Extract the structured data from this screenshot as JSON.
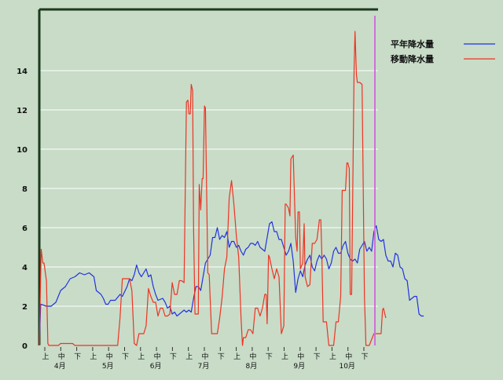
{
  "chart_data": {
    "type": "line",
    "title": "",
    "xlabel": "",
    "ylabel": "",
    "ylim": [
      0,
      16
    ],
    "yticks": [
      0,
      2,
      4,
      6,
      8,
      10,
      12,
      14
    ],
    "grid": true,
    "legend_position": "top-right",
    "period_labels": [
      "上",
      "中",
      "下"
    ],
    "months": [
      "4月",
      "5月",
      "6月",
      "7月",
      "8月",
      "9月",
      "10月"
    ],
    "x_range": [
      0,
      190
    ],
    "series": [
      {
        "name": "平年降水量",
        "color": "#2233dd",
        "points": [
          [
            0,
            0
          ],
          [
            0.6,
            2.1
          ],
          [
            3,
            2.0
          ],
          [
            5,
            2.0
          ],
          [
            7,
            2.2
          ],
          [
            9,
            2.8
          ],
          [
            11,
            3.0
          ],
          [
            13,
            3.4
          ],
          [
            15,
            3.5
          ],
          [
            17,
            3.7
          ],
          [
            19,
            3.6
          ],
          [
            21,
            3.7
          ],
          [
            23,
            3.5
          ],
          [
            24,
            2.8
          ],
          [
            26,
            2.6
          ],
          [
            27,
            2.4
          ],
          [
            28,
            2.1
          ],
          [
            29,
            2.1
          ],
          [
            30,
            2.3
          ],
          [
            32,
            2.3
          ],
          [
            34,
            2.6
          ],
          [
            35,
            2.5
          ],
          [
            37,
            3.0
          ],
          [
            38,
            3.4
          ],
          [
            39,
            3.3
          ],
          [
            40,
            3.6
          ],
          [
            41,
            4.1
          ],
          [
            42,
            3.7
          ],
          [
            43,
            3.5
          ],
          [
            44,
            3.7
          ],
          [
            45,
            3.9
          ],
          [
            46,
            3.5
          ],
          [
            47,
            3.6
          ],
          [
            48,
            3.0
          ],
          [
            49,
            2.6
          ],
          [
            50,
            2.3
          ],
          [
            52,
            2.4
          ],
          [
            53,
            2.2
          ],
          [
            54,
            1.9
          ],
          [
            55,
            2.0
          ],
          [
            56,
            1.6
          ],
          [
            57,
            1.7
          ],
          [
            58,
            1.5
          ],
          [
            60,
            1.7
          ],
          [
            61,
            1.8
          ],
          [
            62,
            1.7
          ],
          [
            63,
            1.8
          ],
          [
            64,
            1.7
          ],
          [
            65,
            2.4
          ],
          [
            66,
            3.0
          ],
          [
            67,
            3.0
          ],
          [
            68,
            2.8
          ],
          [
            69,
            3.5
          ],
          [
            70,
            4.2
          ],
          [
            71,
            4.4
          ],
          [
            72,
            4.6
          ],
          [
            73,
            5.5
          ],
          [
            74,
            5.5
          ],
          [
            75,
            6.0
          ],
          [
            76,
            5.4
          ],
          [
            77,
            5.6
          ],
          [
            78,
            5.5
          ],
          [
            79,
            5.8
          ],
          [
            80,
            5.0
          ],
          [
            81,
            5.3
          ],
          [
            82,
            5.3
          ],
          [
            83,
            5.0
          ],
          [
            84,
            5.1
          ],
          [
            85,
            4.8
          ],
          [
            86,
            4.6
          ],
          [
            87,
            4.9
          ],
          [
            88,
            5.0
          ],
          [
            89,
            5.2
          ],
          [
            90,
            5.2
          ],
          [
            91,
            5.1
          ],
          [
            92,
            5.3
          ],
          [
            93,
            5.0
          ],
          [
            94,
            4.9
          ],
          [
            95,
            4.8
          ],
          [
            96,
            5.5
          ],
          [
            97,
            6.2
          ],
          [
            98,
            6.3
          ],
          [
            99,
            5.8
          ],
          [
            100,
            5.8
          ],
          [
            101,
            5.4
          ],
          [
            102,
            5.4
          ],
          [
            103,
            5.0
          ],
          [
            104,
            4.6
          ],
          [
            105,
            4.8
          ],
          [
            106,
            5.2
          ],
          [
            107,
            4.3
          ],
          [
            108,
            2.7
          ],
          [
            109,
            3.4
          ],
          [
            110,
            3.8
          ],
          [
            111,
            3.5
          ],
          [
            112,
            4.1
          ],
          [
            113,
            4.4
          ],
          [
            114,
            4.6
          ],
          [
            115,
            4.0
          ],
          [
            116,
            3.8
          ],
          [
            117,
            4.3
          ],
          [
            118,
            4.6
          ],
          [
            119,
            4.4
          ],
          [
            120,
            4.6
          ],
          [
            121,
            4.4
          ],
          [
            122,
            3.9
          ],
          [
            123,
            4.2
          ],
          [
            124,
            4.8
          ],
          [
            125,
            5.0
          ],
          [
            126,
            4.7
          ],
          [
            127,
            4.7
          ],
          [
            128,
            5.1
          ],
          [
            129,
            5.3
          ],
          [
            130,
            4.7
          ],
          [
            131,
            4.4
          ],
          [
            132,
            4.3
          ],
          [
            133,
            4.4
          ],
          [
            134,
            4.2
          ],
          [
            135,
            4.9
          ],
          [
            136,
            5.1
          ],
          [
            137,
            5.3
          ],
          [
            138,
            4.8
          ],
          [
            139,
            5.0
          ],
          [
            140,
            4.8
          ],
          [
            141,
            5.8
          ],
          [
            142,
            6.1
          ],
          [
            143,
            5.4
          ],
          [
            144,
            5.3
          ],
          [
            145,
            5.4
          ],
          [
            146,
            4.6
          ],
          [
            147,
            4.3
          ],
          [
            148,
            4.3
          ],
          [
            149,
            4.0
          ],
          [
            150,
            4.7
          ],
          [
            151,
            4.6
          ],
          [
            152,
            4.0
          ],
          [
            153,
            3.9
          ],
          [
            154,
            3.4
          ],
          [
            155,
            3.3
          ],
          [
            156,
            2.3
          ],
          [
            157,
            2.4
          ],
          [
            158,
            2.5
          ],
          [
            159,
            2.5
          ],
          [
            160,
            1.6
          ],
          [
            161,
            1.5
          ],
          [
            162,
            1.5
          ]
        ]
      },
      {
        "name": "移動降水量",
        "color": "#ee3322",
        "points": [
          [
            0,
            0
          ],
          [
            0.8,
            4.9
          ],
          [
            1.5,
            4.2
          ],
          [
            2,
            4.2
          ],
          [
            3,
            3.3
          ],
          [
            3.6,
            0.1
          ],
          [
            4,
            0
          ],
          [
            6,
            0
          ],
          [
            8,
            0
          ],
          [
            9,
            0.1
          ],
          [
            14,
            0.1
          ],
          [
            15,
            0
          ],
          [
            20,
            0
          ],
          [
            25,
            0
          ],
          [
            30,
            0
          ],
          [
            32,
            0
          ],
          [
            33,
            0
          ],
          [
            34,
            1.4
          ],
          [
            35,
            3.4
          ],
          [
            36,
            3.4
          ],
          [
            37,
            3.4
          ],
          [
            38,
            3.4
          ],
          [
            39,
            2.8
          ],
          [
            40,
            0.1
          ],
          [
            41,
            0
          ],
          [
            42,
            0.6
          ],
          [
            43,
            0.6
          ],
          [
            44,
            0.6
          ],
          [
            45,
            1.0
          ],
          [
            46,
            2.9
          ],
          [
            47,
            2.5
          ],
          [
            48,
            2.2
          ],
          [
            49,
            2.2
          ],
          [
            50,
            1.5
          ],
          [
            51,
            1.9
          ],
          [
            52,
            1.9
          ],
          [
            53,
            1.5
          ],
          [
            54,
            1.5
          ],
          [
            55,
            1.6
          ],
          [
            56,
            3.2
          ],
          [
            57,
            2.6
          ],
          [
            58,
            2.6
          ],
          [
            59,
            3.3
          ],
          [
            60,
            3.3
          ],
          [
            61,
            3.2
          ],
          [
            62,
            12.4
          ],
          [
            62.6,
            12.5
          ],
          [
            63,
            11.8
          ],
          [
            63.6,
            11.8
          ],
          [
            64,
            13.3
          ],
          [
            64.6,
            13.0
          ],
          [
            65,
            6.0
          ],
          [
            65.6,
            1.6
          ],
          [
            66,
            1.6
          ],
          [
            67,
            1.6
          ],
          [
            67.4,
            8.2
          ],
          [
            68,
            6.9
          ],
          [
            68.6,
            8.5
          ],
          [
            69,
            8.5
          ],
          [
            69.6,
            12.2
          ],
          [
            70,
            12.1
          ],
          [
            71,
            3.7
          ],
          [
            71.6,
            3.6
          ],
          [
            72,
            2.4
          ],
          [
            72.6,
            0.6
          ],
          [
            73,
            0.6
          ],
          [
            74,
            0.6
          ],
          [
            75,
            0.6
          ],
          [
            76,
            1.4
          ],
          [
            77,
            2.4
          ],
          [
            78,
            3.9
          ],
          [
            79,
            4.5
          ],
          [
            80,
            7.5
          ],
          [
            81,
            8.4
          ],
          [
            82,
            7.2
          ],
          [
            83,
            5.6
          ],
          [
            84,
            4.5
          ],
          [
            85,
            1.4
          ],
          [
            85.6,
            0
          ],
          [
            86,
            0.4
          ],
          [
            87,
            0.4
          ],
          [
            88,
            0.8
          ],
          [
            89,
            0.8
          ],
          [
            90,
            0.6
          ],
          [
            91,
            1.9
          ],
          [
            92,
            1.9
          ],
          [
            93,
            1.5
          ],
          [
            94,
            1.9
          ],
          [
            95,
            2.6
          ],
          [
            95.6,
            2.6
          ],
          [
            96,
            1.1
          ],
          [
            96.6,
            4.6
          ],
          [
            97,
            4.5
          ],
          [
            98,
            3.9
          ],
          [
            99,
            3.4
          ],
          [
            100,
            3.9
          ],
          [
            101,
            3.5
          ],
          [
            102,
            0.6
          ],
          [
            103,
            1.0
          ],
          [
            103.6,
            7.2
          ],
          [
            104,
            7.2
          ],
          [
            105,
            7.0
          ],
          [
            105.6,
            6.6
          ],
          [
            106,
            9.5
          ],
          [
            107,
            9.7
          ],
          [
            108,
            5.5
          ],
          [
            108.6,
            4.8
          ],
          [
            109,
            6.8
          ],
          [
            109.6,
            6.8
          ],
          [
            110,
            3.9
          ],
          [
            111,
            4.2
          ],
          [
            111.6,
            6.2
          ],
          [
            112,
            3.5
          ],
          [
            113,
            3.0
          ],
          [
            114,
            3.1
          ],
          [
            115,
            5.2
          ],
          [
            116,
            5.2
          ],
          [
            117,
            5.4
          ],
          [
            118,
            6.4
          ],
          [
            118.6,
            6.4
          ],
          [
            119,
            4.8
          ],
          [
            119.6,
            1.2
          ],
          [
            120,
            1.2
          ],
          [
            121,
            1.2
          ],
          [
            122,
            0
          ],
          [
            123,
            0
          ],
          [
            124,
            0
          ],
          [
            125,
            1.2
          ],
          [
            126,
            1.2
          ],
          [
            127,
            2.5
          ],
          [
            127.6,
            7.9
          ],
          [
            128,
            7.9
          ],
          [
            129,
            7.9
          ],
          [
            129.6,
            9.3
          ],
          [
            130,
            9.3
          ],
          [
            130.6,
            9.0
          ],
          [
            131,
            2.6
          ],
          [
            131.6,
            2.6
          ],
          [
            132,
            7.0
          ],
          [
            132.6,
            14.0
          ],
          [
            133,
            16.0
          ],
          [
            133.6,
            13.8
          ],
          [
            134,
            13.4
          ],
          [
            135,
            13.4
          ],
          [
            136,
            13.3
          ],
          [
            137,
            2.5
          ],
          [
            137.6,
            0
          ],
          [
            138,
            0
          ],
          [
            139,
            0
          ],
          [
            140,
            0.3
          ],
          [
            141,
            0.6
          ],
          [
            142,
            0.6
          ],
          [
            143,
            0.6
          ],
          [
            144,
            0.6
          ],
          [
            144.6,
            1.8
          ],
          [
            145,
            1.9
          ],
          [
            146,
            1.4
          ]
        ]
      }
    ],
    "marker_line": {
      "x": 161,
      "color": "#d070d8"
    }
  }
}
